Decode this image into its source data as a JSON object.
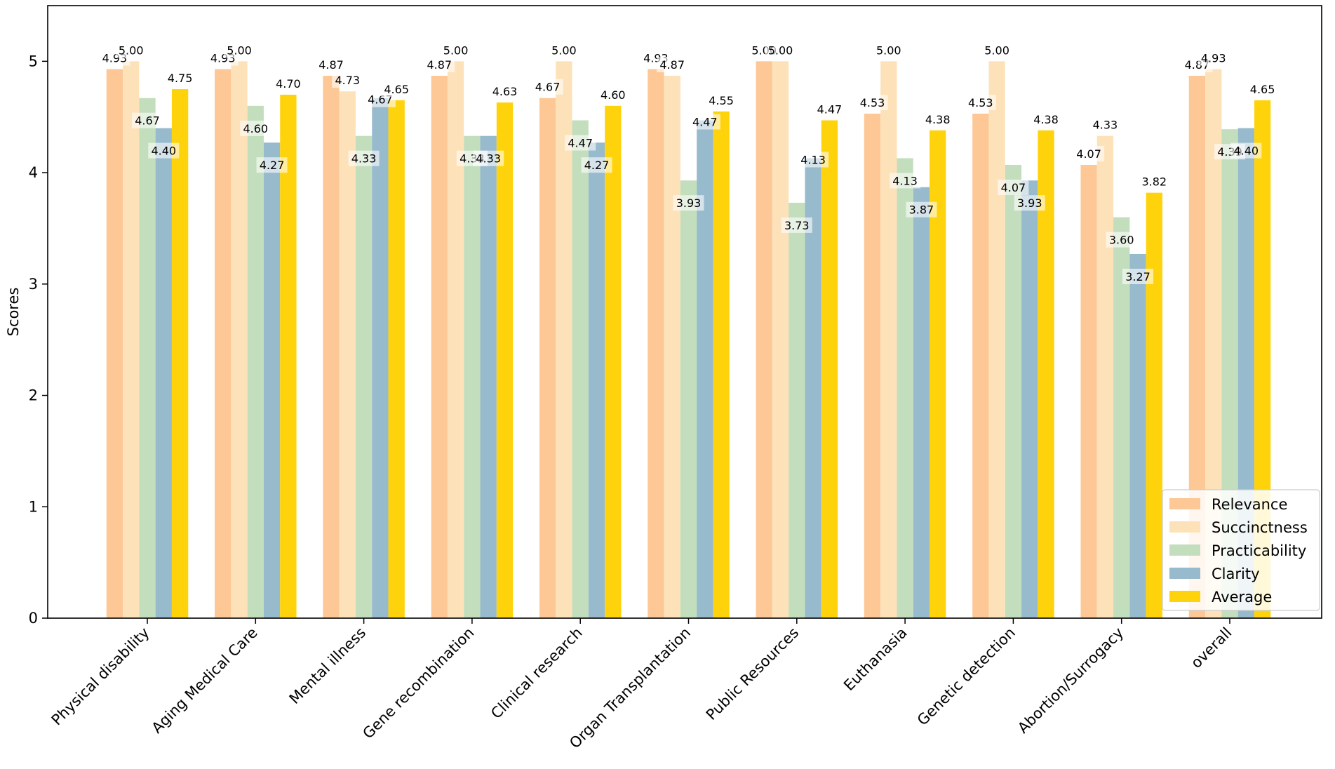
{
  "chart_data": {
    "type": "bar",
    "title": "",
    "xlabel": "",
    "ylabel": "Scores",
    "ylim": [
      0,
      5.5
    ],
    "yticks": [
      0,
      1,
      2,
      3,
      4,
      5
    ],
    "grid": false,
    "legend_position": "bottom-right",
    "categories": [
      "Physical disability",
      "Aging Medical Care",
      "Mental illness",
      "Gene recombination",
      "Clinical research",
      "Organ Transplantation",
      "Public Resources",
      "Euthanasia",
      "Genetic detection",
      "Abortion/Surrogacy",
      "overall"
    ],
    "series": [
      {
        "name": "Relevance",
        "color": "#FDC896",
        "values": [
          4.93,
          4.93,
          4.87,
          4.87,
          4.67,
          4.93,
          5.0,
          4.53,
          4.53,
          4.07,
          4.87
        ]
      },
      {
        "name": "Succinctness",
        "color": "#FDE2B9",
        "values": [
          5.0,
          5.0,
          4.73,
          5.0,
          5.0,
          4.87,
          5.0,
          5.0,
          5.0,
          4.33,
          4.93
        ]
      },
      {
        "name": "Practicability",
        "color": "#C3DEBD",
        "values": [
          4.67,
          4.6,
          4.33,
          4.33,
          4.47,
          3.93,
          3.73,
          4.13,
          4.07,
          3.6,
          4.39
        ]
      },
      {
        "name": "Clarity",
        "color": "#98BACD",
        "values": [
          4.4,
          4.27,
          4.67,
          4.33,
          4.27,
          4.47,
          4.13,
          3.87,
          3.93,
          3.27,
          4.4
        ]
      },
      {
        "name": "Average",
        "color": "#FFD30B",
        "values": [
          4.75,
          4.7,
          4.65,
          4.63,
          4.6,
          4.55,
          4.47,
          4.38,
          4.38,
          3.82,
          4.65
        ]
      }
    ],
    "value_labels": [
      [
        "4.93",
        "5.00",
        "4.67",
        "4.40",
        "4.75"
      ],
      [
        "4.93",
        "5.00",
        "4.60",
        "4.27",
        "4.70"
      ],
      [
        "4.87",
        "4.73",
        "4.33",
        "4.67",
        "4.65"
      ],
      [
        "4.87",
        "5.00",
        "4.33",
        "4.33",
        "4.63"
      ],
      [
        "4.67",
        "5.00",
        "4.47",
        "4.27",
        "4.60"
      ],
      [
        "4.93",
        "4.87",
        "3.93",
        "4.47",
        "4.55"
      ],
      [
        "5.00",
        "5.00",
        "3.73",
        "4.13",
        "4.47"
      ],
      [
        "4.53",
        "5.00",
        "4.13",
        "3.87",
        "4.38"
      ],
      [
        "4.53",
        "5.00",
        "4.07",
        "3.93",
        "4.38"
      ],
      [
        "4.07",
        "4.33",
        "3.60",
        "3.27",
        "3.82"
      ],
      [
        "4.87",
        "4.93",
        "4.39",
        "4.40",
        "4.65"
      ]
    ]
  }
}
